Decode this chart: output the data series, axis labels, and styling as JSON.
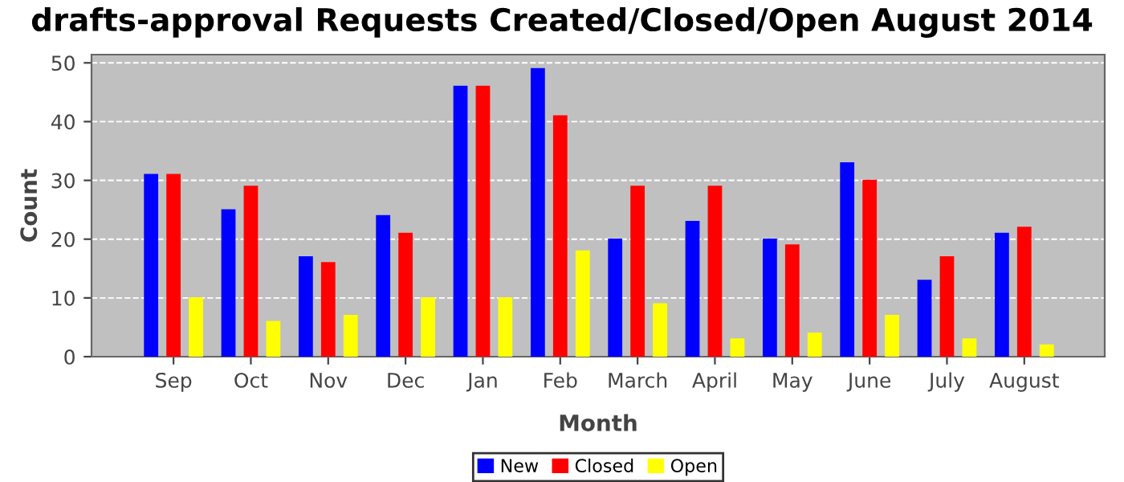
{
  "chart_data": {
    "type": "bar",
    "title": "drafts-approval Requests Created/Closed/Open August 2014",
    "xlabel": "Month",
    "ylabel": "Count",
    "categories": [
      "Sep",
      "Oct",
      "Nov",
      "Dec",
      "Jan",
      "Feb",
      "March",
      "April",
      "May",
      "June",
      "July",
      "August"
    ],
    "series": [
      {
        "name": "New",
        "color": "#0000ff",
        "values": [
          31,
          25,
          17,
          24,
          46,
          49,
          20,
          23,
          20,
          33,
          13,
          21
        ]
      },
      {
        "name": "Closed",
        "color": "#ff0000",
        "values": [
          31,
          29,
          16,
          21,
          46,
          41,
          29,
          29,
          19,
          30,
          17,
          22
        ]
      },
      {
        "name": "Open",
        "color": "#ffff00",
        "values": [
          10,
          6,
          7,
          10,
          10,
          18,
          9,
          3,
          4,
          7,
          3,
          2
        ]
      }
    ],
    "ylim": [
      0,
      51.4
    ],
    "yticks": [
      0,
      10,
      20,
      30,
      40,
      50
    ],
    "grid": "y",
    "legend": "bottom"
  }
}
